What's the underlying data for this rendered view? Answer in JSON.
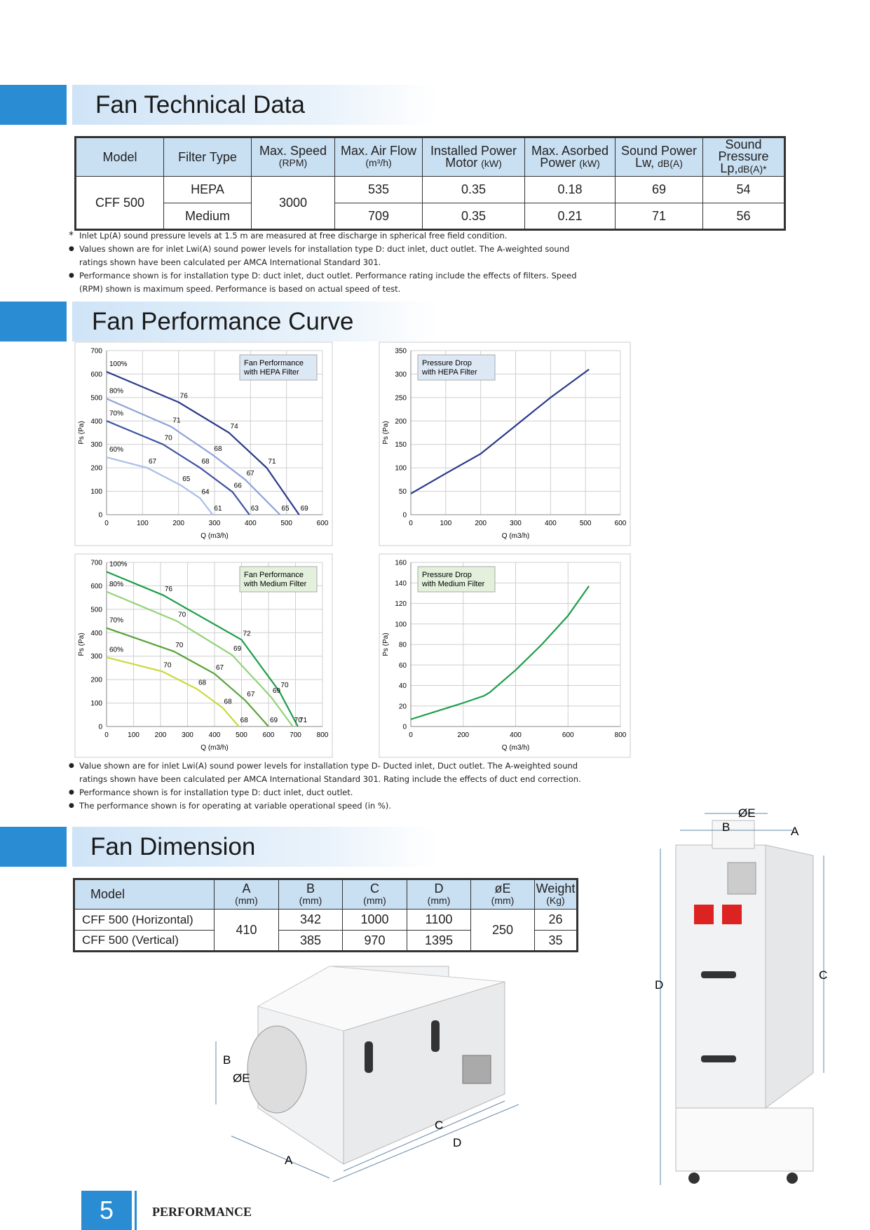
{
  "sections": {
    "technical": "Fan Technical Data",
    "performance": "Fan Performance Curve",
    "dimension": "Fan Dimension"
  },
  "tech_table": {
    "headers": [
      {
        "title": "Model"
      },
      {
        "title": "Filter Type"
      },
      {
        "title": "Max. Speed",
        "unit": "(RPM)"
      },
      {
        "title": "Max. Air Flow",
        "unit": "(m³/h)"
      },
      {
        "title": "Installed Power Motor",
        "unit": "(kW)"
      },
      {
        "title": "Max. Asorbed Power",
        "unit": "(kW)"
      },
      {
        "title": "Sound Power Lw,",
        "unit": "dB(A)"
      },
      {
        "title": "Sound Pressure Lp,",
        "unit": "dB(A)*"
      }
    ],
    "model": "CFF 500",
    "speed": 3000,
    "rows": [
      [
        "HEPA",
        535,
        0.35,
        0.18,
        69,
        54
      ],
      [
        "Medium",
        709,
        0.35,
        0.21,
        71,
        56
      ]
    ]
  },
  "tech_notes": [
    "Inlet Lp(A) sound pressure levels at 1.5 m are measured at free discharge in spherical free field condition.",
    "Values shown are for inlet Lwi(A) sound power levels for installation type D: duct inlet, duct outlet. The A-weighted sound ratings shown have been calculated per AMCA International Standard 301.",
    "Performance shown is for installation type D: duct inlet, duct outlet. Performance rating include the effects of filters. Speed (RPM) shown is maximum speed. Performance is based on actual speed of test."
  ],
  "chart_data": [
    {
      "type": "line",
      "annotation": [
        "Fan Performance",
        "with HEPA Filter"
      ],
      "annotation_position": "top-right",
      "annotation_color": "#dde8f5",
      "x_label": "Q (m3/h)",
      "y_label": "Ps (Pa)",
      "xlim": [
        0,
        600
      ],
      "xticks": [
        0,
        100,
        200,
        300,
        400,
        500,
        600
      ],
      "ylim": [
        0,
        700
      ],
      "yticks": [
        0,
        100,
        200,
        300,
        400,
        500,
        600,
        700
      ],
      "grid": true,
      "series": [
        {
          "name": "100%",
          "color": "#2b3a8a",
          "x": [
            0,
            200,
            340,
            445,
            535
          ],
          "values": [
            610,
            480,
            350,
            200,
            0
          ],
          "point_labels": [
            null,
            76,
            74,
            71,
            69
          ]
        },
        {
          "name": "80%",
          "color": "#8ea3d8",
          "x": [
            0,
            180,
            295,
            385,
            482
          ],
          "values": [
            495,
            375,
            255,
            150,
            0
          ],
          "point_labels": [
            null,
            71,
            68,
            67,
            65
          ]
        },
        {
          "name": "70%",
          "color": "#3d52a3",
          "x": [
            0,
            157,
            260,
            350,
            397
          ],
          "values": [
            400,
            300,
            200,
            97,
            0
          ],
          "point_labels": [
            null,
            70,
            68,
            66,
            63
          ]
        },
        {
          "name": "60%",
          "color": "#a9bfe6",
          "x": [
            0,
            113,
            207,
            260,
            295
          ],
          "values": [
            245,
            200,
            125,
            70,
            0
          ],
          "point_labels": [
            null,
            67,
            65,
            64,
            61
          ]
        }
      ]
    },
    {
      "type": "line",
      "annotation": [
        "Pressure Drop",
        "with HEPA Filter"
      ],
      "annotation_position": "top-left",
      "annotation_color": "#dde8f5",
      "x_label": "Q (m3/h)",
      "y_label": "Ps (Pa)",
      "xlim": [
        0,
        600
      ],
      "xticks": [
        0,
        100,
        200,
        300,
        400,
        500,
        600
      ],
      "ylim": [
        0,
        350
      ],
      "yticks": [
        0,
        50,
        100,
        150,
        200,
        250,
        300,
        350
      ],
      "grid": true,
      "color": "#2b3a8a",
      "x": [
        0,
        100,
        200,
        300,
        400,
        510
      ],
      "values": [
        45,
        88,
        130,
        190,
        250,
        310
      ]
    },
    {
      "type": "line",
      "annotation": [
        "Fan Performance",
        "with Medium Filter"
      ],
      "annotation_position": "top-right",
      "annotation_color": "#e3f0dc",
      "x_label": "Q (m3/h)",
      "y_label": "Ps (Pa)",
      "xlim": [
        0,
        800
      ],
      "xticks": [
        0,
        100,
        200,
        300,
        400,
        500,
        600,
        700,
        800
      ],
      "ylim": [
        0,
        700
      ],
      "yticks": [
        0,
        100,
        200,
        300,
        400,
        500,
        600,
        700
      ],
      "grid": true,
      "series": [
        {
          "name": "100%",
          "color": "#1e9e4a",
          "x": [
            0,
            210,
            500,
            640,
            709
          ],
          "values": [
            660,
            560,
            370,
            150,
            0
          ],
          "point_labels": [
            null,
            76,
            72,
            70,
            71
          ]
        },
        {
          "name": "80%",
          "color": "#93d37a",
          "x": [
            0,
            260,
            465,
            610,
            690
          ],
          "values": [
            575,
            450,
            305,
            125,
            0
          ],
          "point_labels": [
            null,
            70,
            69,
            69,
            70
          ]
        },
        {
          "name": "70%",
          "color": "#5aa33a",
          "x": [
            0,
            250,
            400,
            515,
            600
          ],
          "values": [
            420,
            320,
            225,
            110,
            0
          ],
          "point_labels": [
            null,
            70,
            67,
            67,
            69
          ]
        },
        {
          "name": "60%",
          "color": "#cbd93c",
          "x": [
            0,
            206,
            335,
            430,
            490
          ],
          "values": [
            295,
            235,
            160,
            80,
            0
          ],
          "point_labels": [
            null,
            70,
            68,
            68,
            68
          ]
        }
      ]
    },
    {
      "type": "line",
      "annotation": [
        "Pressure Drop",
        "with Medium Filter"
      ],
      "annotation_position": "top-left",
      "annotation_color": "#e3f0dc",
      "x_label": "Q (m3/h)",
      "y_label": "Ps (Pa)",
      "xlim": [
        0,
        800
      ],
      "xticks": [
        0,
        200,
        400,
        600,
        800
      ],
      "ylim": [
        0,
        160
      ],
      "yticks": [
        0,
        20,
        40,
        60,
        80,
        100,
        120,
        140,
        160
      ],
      "grid": true,
      "color": "#1e9e4a",
      "x": [
        0,
        100,
        200,
        280,
        300,
        400,
        500,
        600,
        680
      ],
      "values": [
        7,
        15,
        23,
        30,
        33,
        55,
        80,
        108,
        137
      ]
    }
  ],
  "curve_notes": [
    "Value shown are for inlet Lwi(A) sound power levels for installation type D- Ducted inlet, Duct outlet. The A-weighted sound ratings shown have been calculated per AMCA International Standard 301. Rating include the effects of duct end correction.",
    "Performance shown is for installation type D: duct inlet, duct outlet.",
    "The performance shown is for operating at variable operational speed (in %)."
  ],
  "dim_table": {
    "headers": [
      {
        "title": "Model"
      },
      {
        "title": "A",
        "unit": "(mm)"
      },
      {
        "title": "B",
        "unit": "(mm)"
      },
      {
        "title": "C",
        "unit": "(mm)"
      },
      {
        "title": "D",
        "unit": "(mm)"
      },
      {
        "title": "øE",
        "unit": "(mm)"
      },
      {
        "title": "Weight",
        "unit": "(Kg)"
      }
    ],
    "a": 410,
    "e": 250,
    "rows": [
      [
        "CFF 500 (Horizontal)",
        342,
        1000,
        1100,
        26
      ],
      [
        "CFF 500 (Vertical)",
        385,
        970,
        1395,
        35
      ]
    ]
  },
  "figures": {
    "horizontal": [
      "B",
      "ØE",
      "A",
      "C",
      "D"
    ],
    "vertical": [
      "ØE",
      "B",
      "A",
      "D",
      "C"
    ]
  },
  "footer": {
    "page": 5,
    "label": "PERFORMANCE"
  }
}
